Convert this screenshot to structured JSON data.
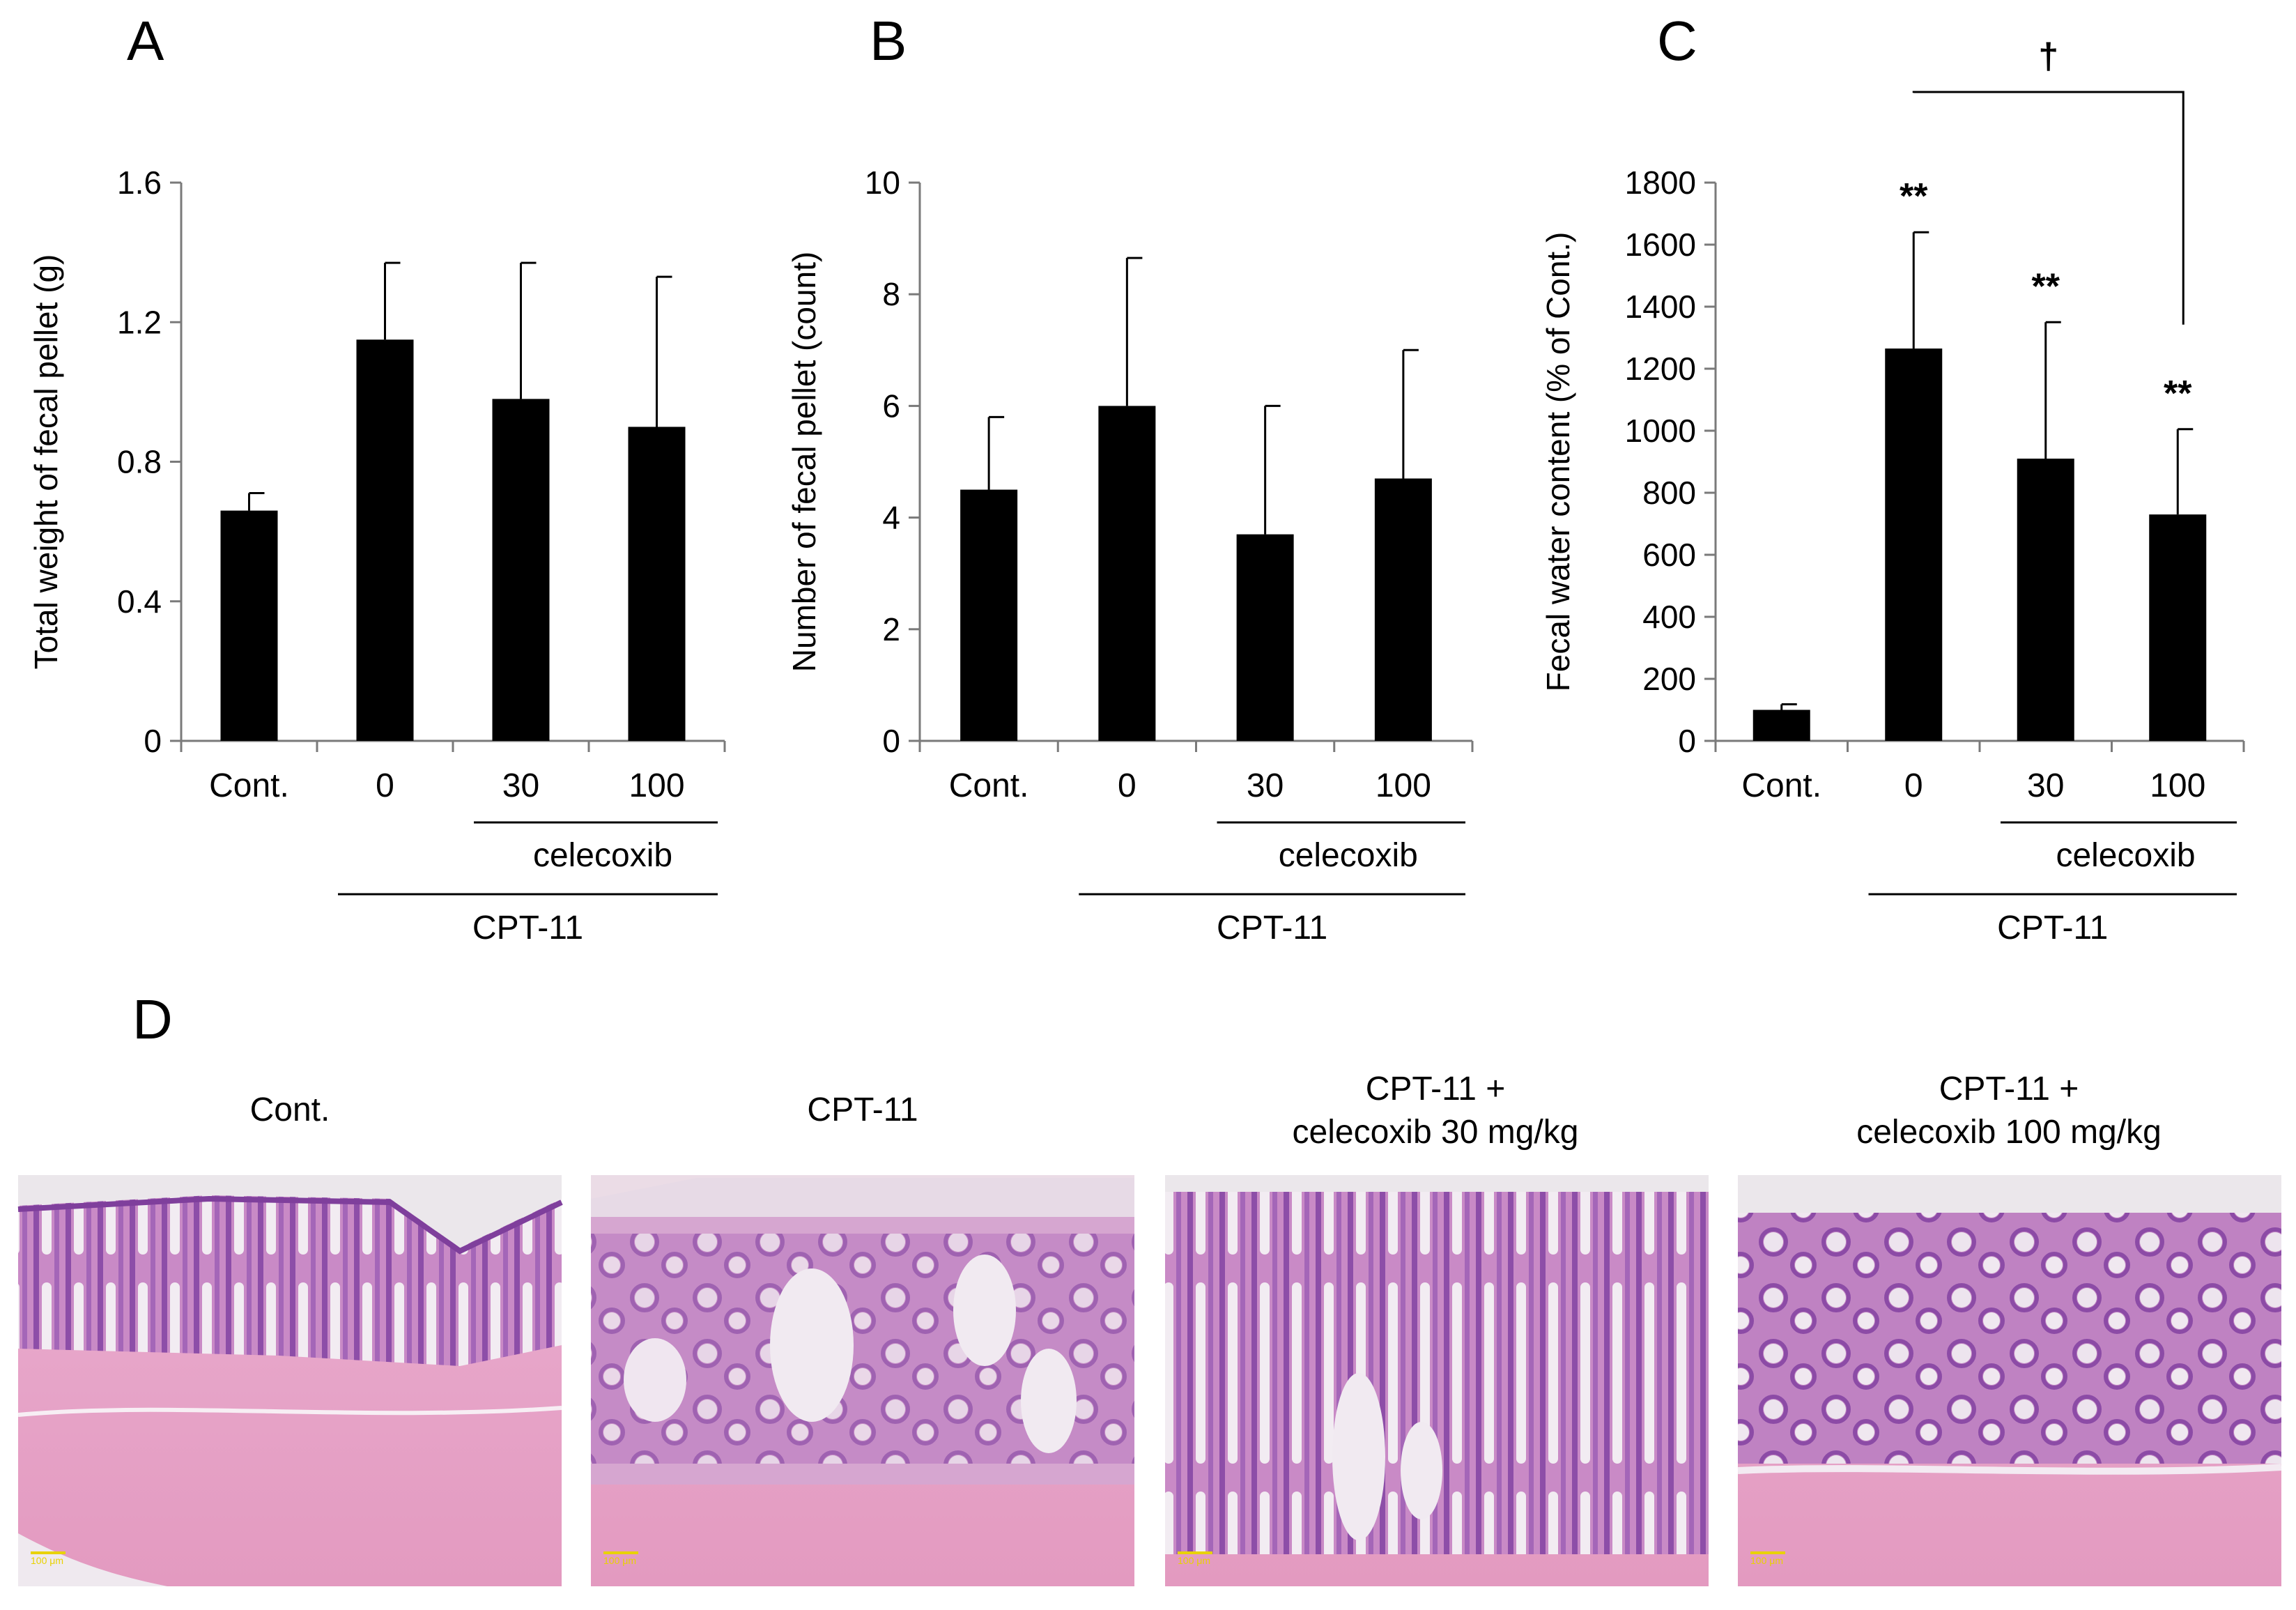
{
  "panels": [
    "A",
    "B",
    "C",
    "D"
  ],
  "groups": {
    "treatment_label": "celecoxib",
    "drug_label": "CPT-11"
  },
  "chart_data": [
    {
      "panel": "A",
      "type": "bar",
      "categories": [
        "Cont.",
        "0",
        "30",
        "100"
      ],
      "values": [
        0.66,
        1.15,
        0.98,
        0.9
      ],
      "errors": [
        0.05,
        0.22,
        0.39,
        0.43
      ],
      "ylabel": "Total weight of fecal pellet (g)",
      "ylim": [
        0,
        1.6
      ],
      "yticks": [
        0,
        0.4,
        0.8,
        1.2,
        1.6
      ],
      "ytick_labels": [
        "0",
        "0.4",
        "0.8",
        "1.2",
        "1.6"
      ],
      "group_labels": [
        "celecoxib",
        "CPT-11"
      ],
      "bar_color": "#000000"
    },
    {
      "panel": "B",
      "type": "bar",
      "categories": [
        "Cont.",
        "0",
        "30",
        "100"
      ],
      "values": [
        4.5,
        6.0,
        3.7,
        4.7
      ],
      "errors": [
        1.3,
        2.65,
        2.3,
        2.3
      ],
      "ylabel": "Number of fecal pellet (count)",
      "ylim": [
        0,
        10
      ],
      "yticks": [
        0,
        2,
        4,
        6,
        8,
        10
      ],
      "ytick_labels": [
        "0",
        "2",
        "4",
        "6",
        "8",
        "10"
      ],
      "group_labels": [
        "celecoxib",
        "CPT-11"
      ],
      "bar_color": "#000000"
    },
    {
      "panel": "C",
      "type": "bar",
      "categories": [
        "Cont.",
        "0",
        "30",
        "100"
      ],
      "values": [
        100,
        1265,
        910,
        730
      ],
      "errors": [
        18,
        375,
        440,
        275
      ],
      "ylabel": "Fecal water  content (% of Cont.)",
      "ylim": [
        0,
        1800
      ],
      "yticks": [
        0,
        200,
        400,
        600,
        800,
        1000,
        1200,
        1400,
        1600,
        1800
      ],
      "ytick_labels": [
        "0",
        "200",
        "400",
        "600",
        "800",
        "1000",
        "1200",
        "1400",
        "1600",
        "1800"
      ],
      "significance": [
        "",
        "**",
        "**",
        "**"
      ],
      "bracket": {
        "label": "†",
        "from_category": "0",
        "to_category": "100"
      },
      "group_labels": [
        "celecoxib",
        "CPT-11"
      ],
      "bar_color": "#000000"
    }
  ],
  "micrographs": [
    {
      "caption": [
        "Cont."
      ],
      "scale_bar": "100 μm"
    },
    {
      "caption": [
        "CPT-11"
      ],
      "scale_bar": "100 μm"
    },
    {
      "caption": [
        "CPT-11 +",
        "celecoxib 30 mg/kg"
      ],
      "scale_bar": "100 μm"
    },
    {
      "caption": [
        "CPT-11 +",
        "celecoxib 100 mg/kg"
      ],
      "scale_bar": "100 μm"
    }
  ],
  "colors": {
    "bar": "#000000",
    "scale_bar_text": "#e8d200",
    "he_background": "#e9e5e9",
    "he_pink": "#e7a3c4",
    "he_purple": "#9a5fb0"
  }
}
